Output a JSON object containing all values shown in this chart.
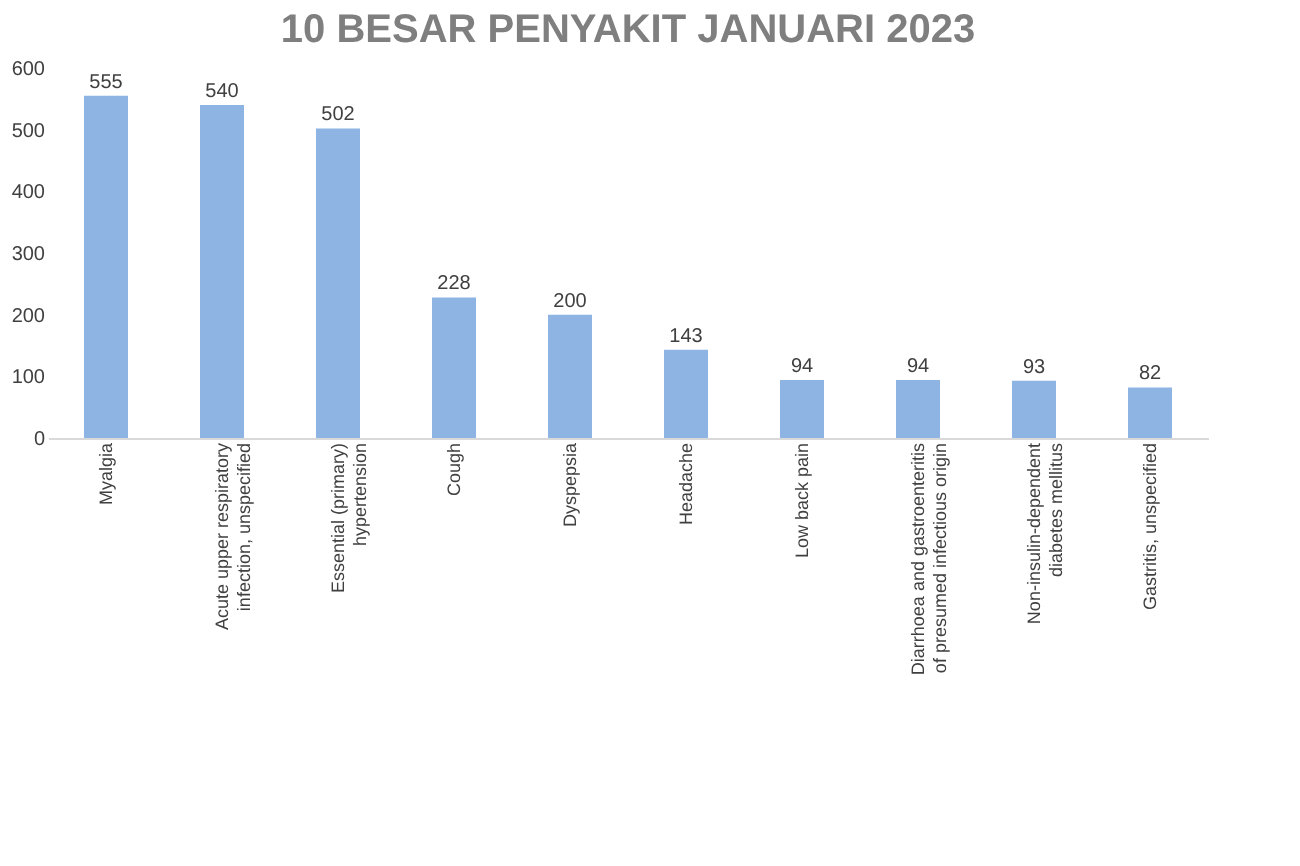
{
  "chart_data": {
    "type": "bar",
    "title": "10 BESAR PENYAKIT JANUARI 2023",
    "categories": [
      "Myalgia",
      "Acute upper respiratory infection, unspecified",
      "Essential (primary) hypertension",
      "Cough",
      "Dyspepsia",
      "Headache",
      "Low back pain",
      "Diarrhoea and gastroenteritis of presumed infectious origin",
      "Non-insulin-dependent diabetes mellitus",
      "Gastritis, unspecified"
    ],
    "values": [
      555,
      540,
      502,
      228,
      200,
      143,
      94,
      94,
      93,
      82
    ],
    "color": "#8db4e2",
    "ylim": [
      0,
      600
    ],
    "yticks": [
      0,
      100,
      200,
      300,
      400,
      500,
      600
    ],
    "grid": false,
    "data_labels": true
  }
}
